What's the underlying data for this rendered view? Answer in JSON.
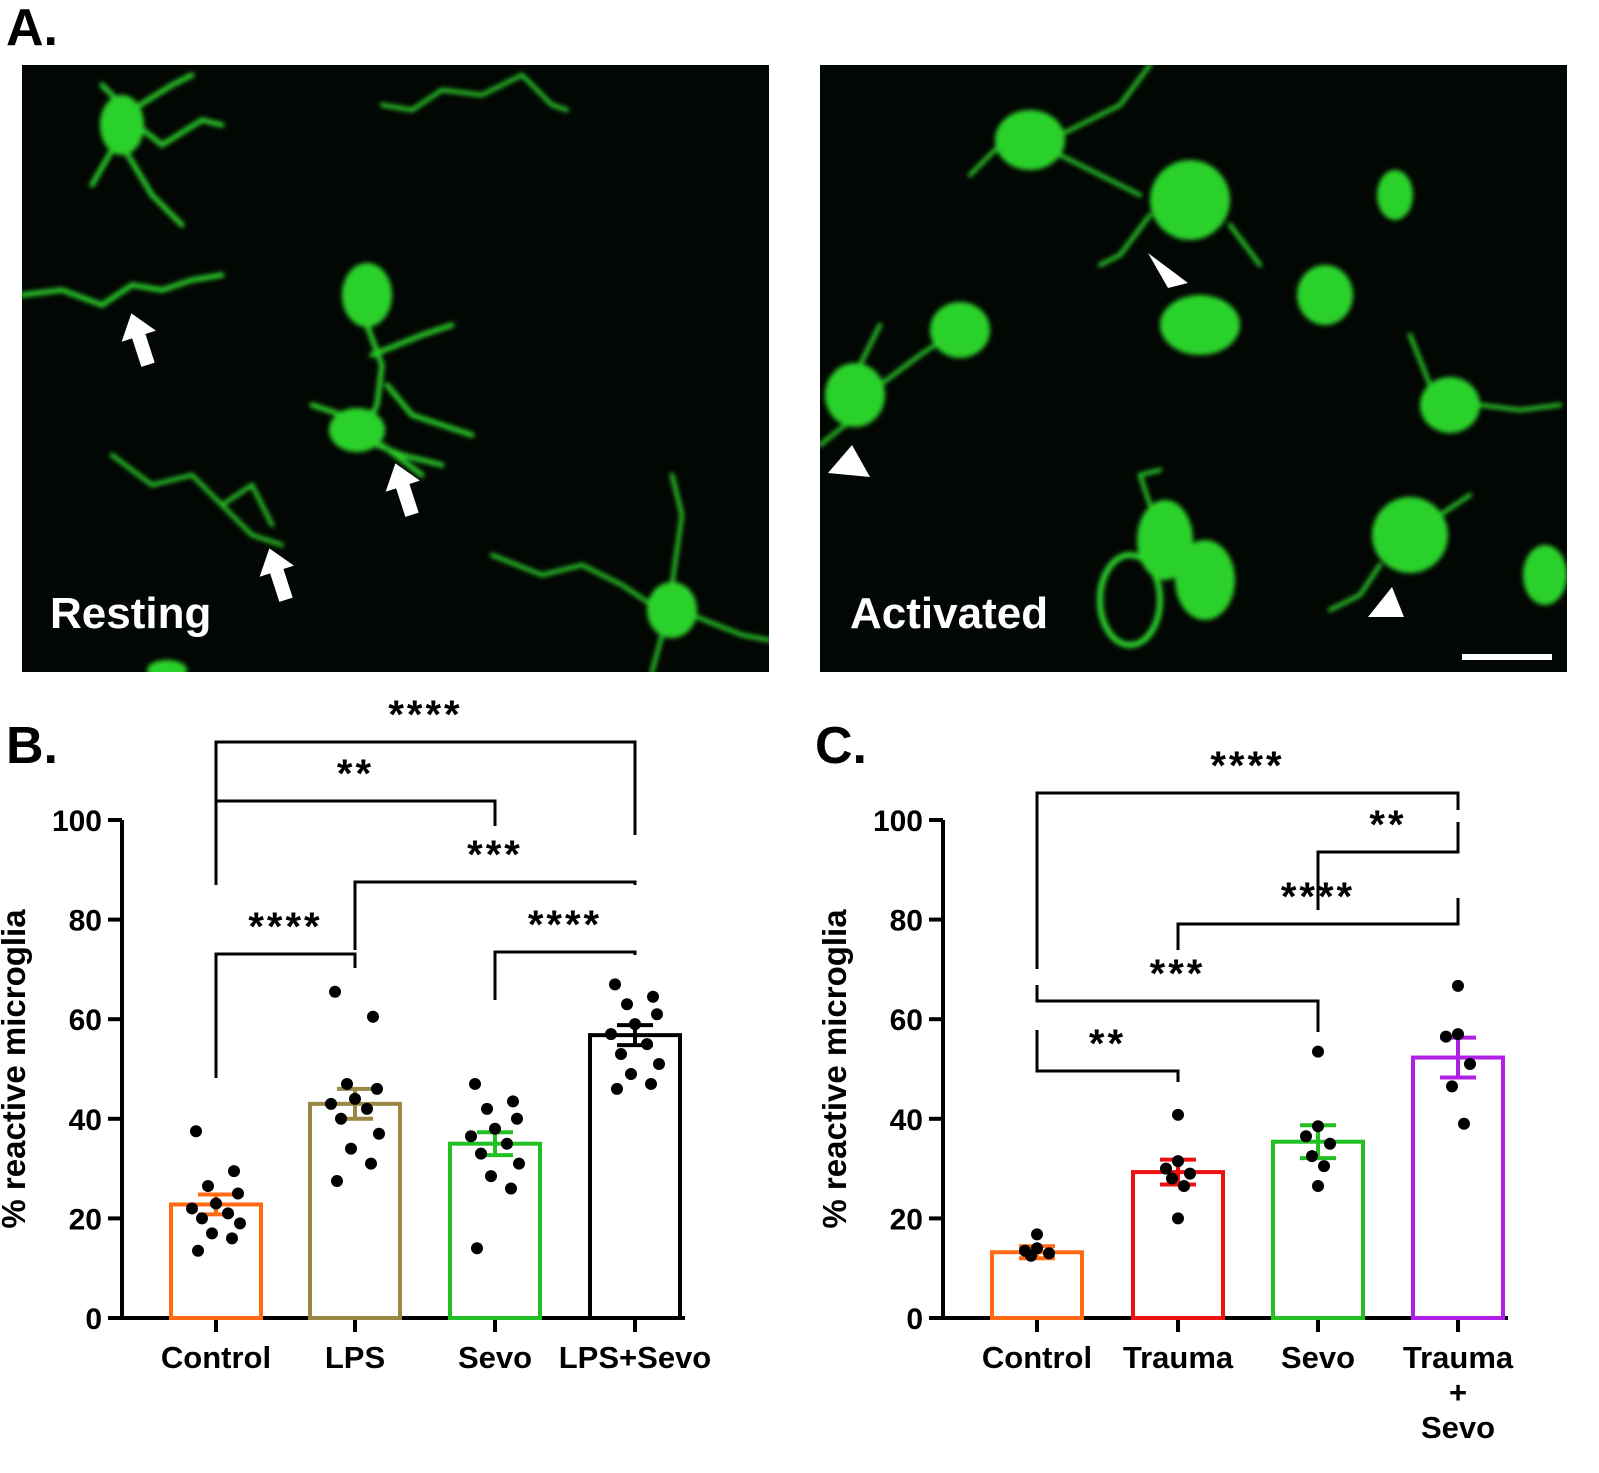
{
  "panels": {
    "a": {
      "letter": "A.",
      "resting_label": "Resting",
      "activated_label": "Activated"
    },
    "b": {
      "letter": "B."
    },
    "c": {
      "letter": "C."
    }
  },
  "colors": {
    "control": "#ff6a13",
    "lps": "#9a8744",
    "sevo": "#22c023",
    "lps_sevo": "#000000",
    "trauma": "#ee1111",
    "trauma_sevo": "#b01fe6",
    "microglia_green": "#2bd12b"
  },
  "micrograph_icons": {
    "resting_markers": "arrow-icon",
    "activated_markers": "arrowhead-icon"
  },
  "chart_data": [
    {
      "type": "bar",
      "panel": "B",
      "categories": [
        "Control",
        "LPS",
        "Sevo",
        "LPS+Sevo"
      ],
      "ylabel": "% reactive microglia",
      "xlabel": "",
      "ylim": [
        0,
        100
      ],
      "yticks": [
        0,
        20,
        40,
        60,
        80,
        100
      ],
      "values": [
        22.8,
        43.0,
        35.0,
        56.8
      ],
      "sem": [
        2.0,
        3.0,
        2.3,
        2.0
      ],
      "points": [
        [
          37.5,
          29.5,
          26.5,
          25.0,
          23.0,
          22.0,
          21.0,
          20.0,
          19.0,
          17.0,
          16.0,
          13.5
        ],
        [
          65.5,
          60.5,
          47.0,
          46.0,
          44.0,
          43.0,
          42.0,
          40.0,
          37.0,
          34.0,
          31.0,
          27.5
        ],
        [
          47.0,
          43.5,
          42.0,
          40.0,
          38.0,
          36.5,
          35.0,
          33.0,
          31.0,
          28.5,
          26.0,
          14.0
        ],
        [
          67.0,
          64.5,
          63.0,
          61.0,
          59.0,
          57.0,
          55.0,
          53.0,
          51.0,
          49.0,
          47.0,
          46.0
        ]
      ],
      "significance": [
        {
          "from": 0,
          "to": 3,
          "label": "****"
        },
        {
          "from": 0,
          "to": 2,
          "label": "**"
        },
        {
          "from": 1,
          "to": 3,
          "label": "***"
        },
        {
          "from": 0,
          "to": 1,
          "label": "****"
        },
        {
          "from": 2,
          "to": 3,
          "label": "****"
        }
      ]
    },
    {
      "type": "bar",
      "panel": "C",
      "categories": [
        "Control",
        "Trauma",
        "Sevo",
        "Trauma\n+\nSevo"
      ],
      "ylabel": "% reactive microglia",
      "xlabel": "",
      "ylim": [
        0,
        100
      ],
      "yticks": [
        0,
        20,
        40,
        60,
        80,
        100
      ],
      "values": [
        13.2,
        29.3,
        35.4,
        52.3
      ],
      "sem": [
        1.2,
        2.5,
        3.3,
        4.0
      ],
      "points": [
        [
          16.8,
          14.0,
          13.5,
          13.0,
          12.5
        ],
        [
          40.8,
          31.5,
          30.0,
          29.0,
          28.0,
          26.5,
          20.0
        ],
        [
          53.5,
          38.5,
          36.5,
          35.0,
          32.5,
          30.5,
          26.5
        ],
        [
          66.7,
          57.0,
          56.5,
          51.0,
          46.5,
          39.0
        ]
      ],
      "significance": [
        {
          "from": 0,
          "to": 3,
          "label": "****"
        },
        {
          "from": 2,
          "to": 3,
          "label": "**"
        },
        {
          "from": 1,
          "to": 3,
          "label": "****"
        },
        {
          "from": 0,
          "to": 2,
          "label": "***"
        },
        {
          "from": 0,
          "to": 1,
          "label": "**"
        }
      ]
    }
  ]
}
